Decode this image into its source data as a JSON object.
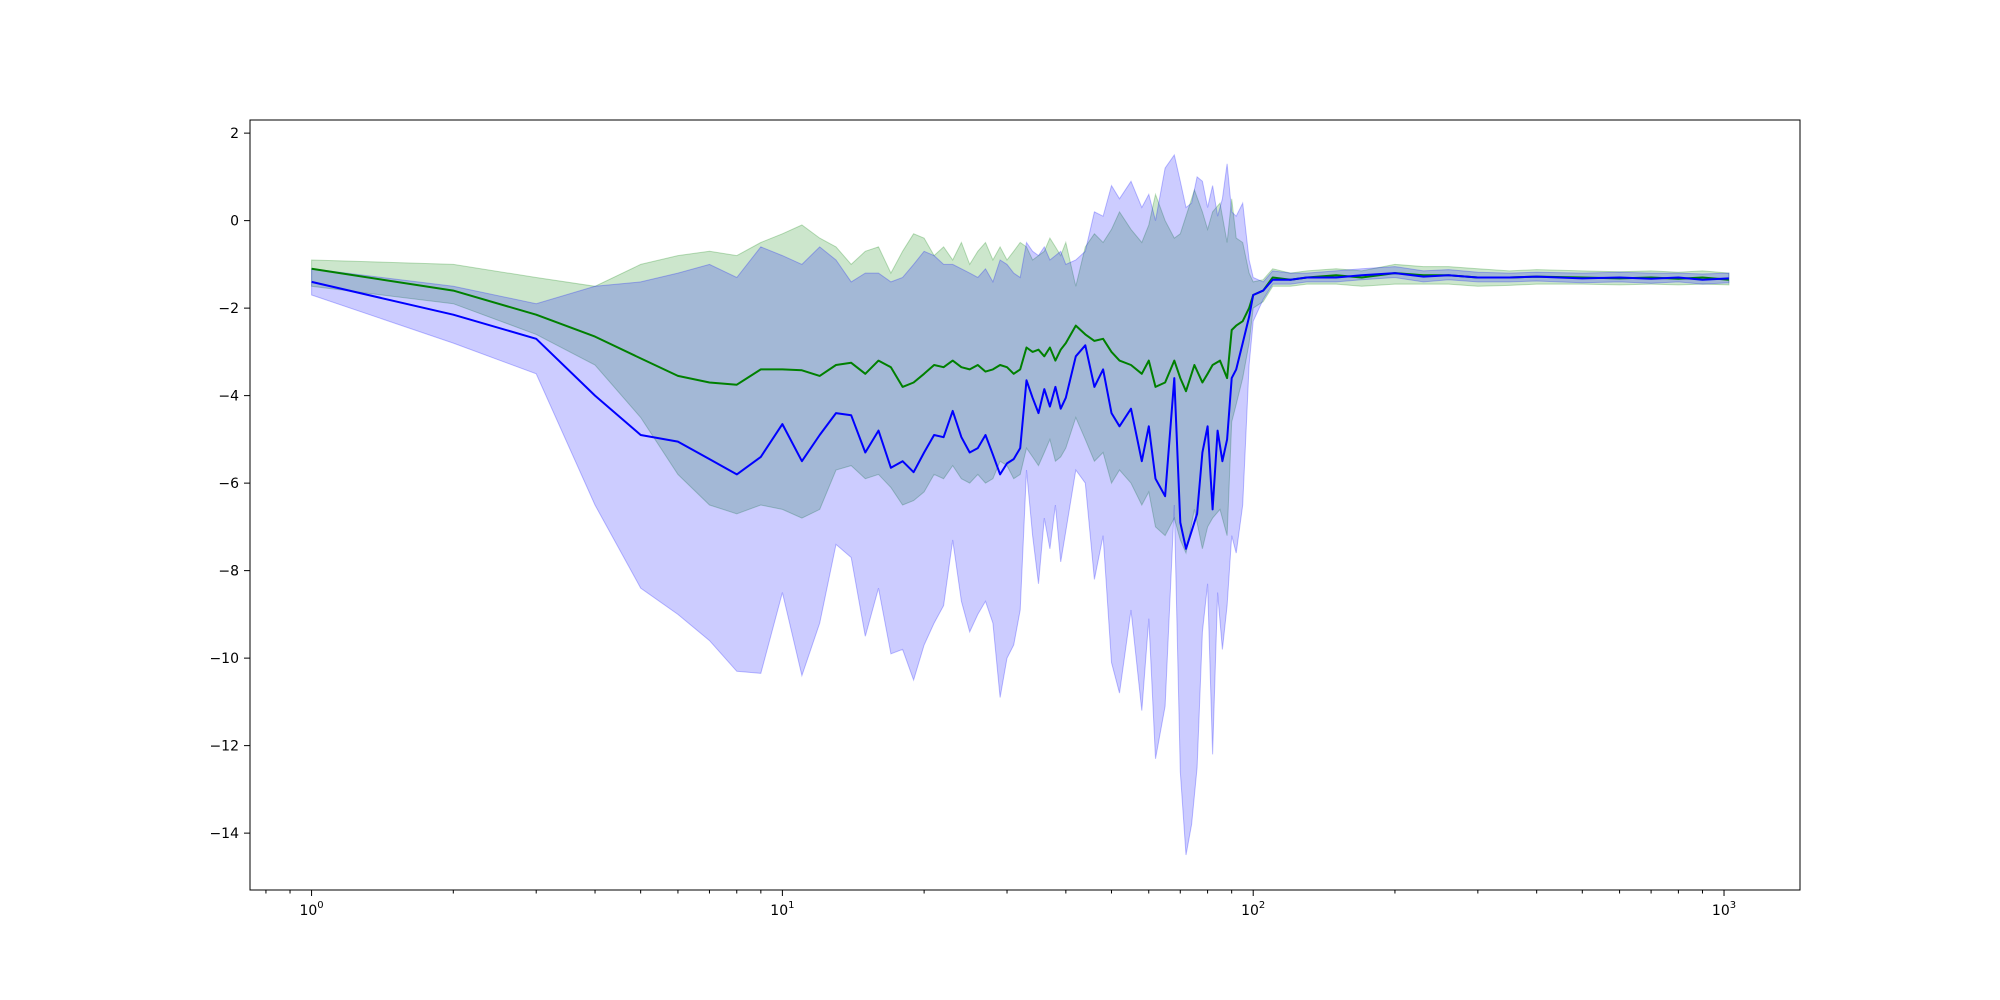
{
  "chart_data": {
    "type": "line",
    "title": "",
    "xlabel": "",
    "ylabel": "",
    "x_scale": "log",
    "xlim": [
      0.74,
      1450
    ],
    "ylim": [
      -15.3,
      2.3
    ],
    "grid": false,
    "legend": "none",
    "x_ticks": [
      {
        "value": 1,
        "base": "10",
        "exp": "0"
      },
      {
        "value": 10,
        "base": "10",
        "exp": "1"
      },
      {
        "value": 100,
        "base": "10",
        "exp": "2"
      },
      {
        "value": 1000,
        "base": "10",
        "exp": "3"
      }
    ],
    "y_ticks": [
      {
        "value": 2,
        "label": "2"
      },
      {
        "value": 0,
        "label": "0"
      },
      {
        "value": -2,
        "label": "−2"
      },
      {
        "value": -4,
        "label": "−4"
      },
      {
        "value": -6,
        "label": "−6"
      },
      {
        "value": -8,
        "label": "−8"
      },
      {
        "value": -10,
        "label": "−10"
      },
      {
        "value": -12,
        "label": "−12"
      },
      {
        "value": -14,
        "label": "−14"
      }
    ],
    "series": [
      {
        "color": "#008000",
        "band_color": "#008000",
        "band_opacity": 0.2,
        "x": [
          1,
          2,
          3,
          4,
          5,
          6,
          7,
          8,
          9,
          10,
          11,
          12,
          13,
          14,
          15,
          16,
          17,
          18,
          19,
          20,
          21,
          22,
          23,
          24,
          25,
          26,
          27,
          28,
          29,
          30,
          31,
          32,
          33,
          34,
          35,
          36,
          37,
          38,
          39,
          40,
          42,
          44,
          46,
          48,
          50,
          52,
          55,
          58,
          60,
          62,
          65,
          68,
          70,
          72,
          75,
          78,
          80,
          82,
          85,
          88,
          90,
          92,
          95,
          98,
          100,
          105,
          110,
          120,
          130,
          150,
          170,
          200,
          230,
          260,
          300,
          350,
          400,
          500,
          600,
          700,
          800,
          900,
          1024
        ],
        "y": [
          -1.1,
          -1.6,
          -2.15,
          -2.65,
          -3.15,
          -3.55,
          -3.7,
          -3.75,
          -3.4,
          -3.4,
          -3.42,
          -3.55,
          -3.3,
          -3.25,
          -3.5,
          -3.2,
          -3.35,
          -3.8,
          -3.7,
          -3.5,
          -3.3,
          -3.35,
          -3.2,
          -3.35,
          -3.4,
          -3.3,
          -3.45,
          -3.4,
          -3.3,
          -3.35,
          -3.5,
          -3.4,
          -2.9,
          -3.0,
          -2.95,
          -3.1,
          -2.9,
          -3.2,
          -2.95,
          -2.8,
          -2.4,
          -2.6,
          -2.75,
          -2.7,
          -3.0,
          -3.2,
          -3.3,
          -3.5,
          -3.2,
          -3.8,
          -3.7,
          -3.2,
          -3.6,
          -3.9,
          -3.3,
          -3.7,
          -3.5,
          -3.3,
          -3.2,
          -3.6,
          -2.5,
          -2.4,
          -2.3,
          -2.0,
          -1.7,
          -1.6,
          -1.3,
          -1.35,
          -1.3,
          -1.25,
          -1.3,
          -1.2,
          -1.25,
          -1.25,
          -1.3,
          -1.3,
          -1.28,
          -1.3,
          -1.32,
          -1.3,
          -1.33,
          -1.3,
          -1.35
        ],
        "lower": [
          -1.5,
          -1.9,
          -2.6,
          -3.3,
          -4.5,
          -5.8,
          -6.5,
          -6.7,
          -6.5,
          -6.6,
          -6.8,
          -6.6,
          -5.7,
          -5.6,
          -5.9,
          -5.8,
          -6.1,
          -6.5,
          -6.4,
          -6.2,
          -5.8,
          -5.9,
          -5.6,
          -5.9,
          -6.0,
          -5.8,
          -6.0,
          -5.9,
          -5.5,
          -5.6,
          -5.9,
          -5.8,
          -5.2,
          -5.4,
          -5.6,
          -5.3,
          -5.0,
          -5.5,
          -5.4,
          -5.2,
          -4.5,
          -5.0,
          -5.5,
          -5.3,
          -6.0,
          -5.7,
          -6.0,
          -6.5,
          -6.2,
          -7.0,
          -7.2,
          -6.8,
          -7.3,
          -7.6,
          -6.6,
          -7.5,
          -7.0,
          -6.8,
          -6.6,
          -7.2,
          -4.6,
          -4.2,
          -3.6,
          -2.8,
          -2.0,
          -1.85,
          -1.5,
          -1.5,
          -1.45,
          -1.45,
          -1.5,
          -1.45,
          -1.45,
          -1.45,
          -1.5,
          -1.48,
          -1.45,
          -1.45,
          -1.47,
          -1.45,
          -1.47,
          -1.45,
          -1.47
        ],
        "upper": [
          -0.9,
          -1.0,
          -1.3,
          -1.5,
          -1.0,
          -0.8,
          -0.7,
          -0.8,
          -0.5,
          -0.3,
          -0.1,
          -0.4,
          -0.6,
          -1.0,
          -0.7,
          -0.6,
          -1.2,
          -0.7,
          -0.3,
          -0.4,
          -0.8,
          -0.6,
          -0.9,
          -0.5,
          -1.0,
          -0.7,
          -0.5,
          -0.9,
          -0.6,
          -0.9,
          -0.7,
          -0.5,
          -0.6,
          -0.9,
          -0.8,
          -0.7,
          -0.4,
          -0.6,
          -0.8,
          -0.5,
          -1.5,
          -0.6,
          -0.3,
          -0.5,
          -0.2,
          0.2,
          -0.2,
          -0.5,
          -0.1,
          0.6,
          0.0,
          -0.4,
          -0.3,
          0.1,
          0.7,
          0.2,
          -0.2,
          0.2,
          0.4,
          -0.5,
          0.5,
          -0.4,
          -0.5,
          -1.2,
          -1.4,
          -1.35,
          -1.1,
          -1.2,
          -1.15,
          -1.1,
          -1.15,
          -1.0,
          -1.05,
          -1.05,
          -1.1,
          -1.15,
          -1.12,
          -1.15,
          -1.17,
          -1.15,
          -1.18,
          -1.15,
          -1.2
        ]
      },
      {
        "color": "#0000ff",
        "band_color": "#0000ff",
        "band_opacity": 0.2,
        "x": [
          1,
          2,
          3,
          4,
          5,
          6,
          7,
          8,
          9,
          10,
          11,
          12,
          13,
          14,
          15,
          16,
          17,
          18,
          19,
          20,
          21,
          22,
          23,
          24,
          25,
          26,
          27,
          28,
          29,
          30,
          31,
          32,
          33,
          34,
          35,
          36,
          37,
          38,
          39,
          40,
          42,
          44,
          46,
          48,
          50,
          52,
          55,
          58,
          60,
          62,
          65,
          68,
          70,
          72,
          74,
          76,
          78,
          80,
          82,
          84,
          86,
          88,
          90,
          92,
          95,
          98,
          100,
          105,
          110,
          120,
          130,
          150,
          170,
          200,
          230,
          260,
          300,
          350,
          400,
          500,
          600,
          700,
          800,
          900,
          1024
        ],
        "y": [
          -1.4,
          -2.15,
          -2.7,
          -4.0,
          -4.9,
          -5.05,
          -5.45,
          -5.8,
          -5.4,
          -4.65,
          -5.5,
          -4.9,
          -4.4,
          -4.45,
          -5.3,
          -4.8,
          -5.65,
          -5.5,
          -5.75,
          -5.3,
          -4.9,
          -4.95,
          -4.35,
          -4.95,
          -5.3,
          -5.2,
          -4.9,
          -5.35,
          -5.8,
          -5.55,
          -5.45,
          -5.2,
          -3.65,
          -4.05,
          -4.4,
          -3.85,
          -4.25,
          -3.8,
          -4.3,
          -4.05,
          -3.1,
          -2.85,
          -3.8,
          -3.4,
          -4.4,
          -4.7,
          -4.3,
          -5.5,
          -4.7,
          -5.9,
          -6.3,
          -3.6,
          -6.9,
          -7.5,
          -7.1,
          -6.7,
          -5.3,
          -4.7,
          -6.6,
          -4.8,
          -5.5,
          -5.0,
          -3.6,
          -3.4,
          -2.8,
          -2.2,
          -1.7,
          -1.6,
          -1.35,
          -1.35,
          -1.3,
          -1.3,
          -1.25,
          -1.2,
          -1.28,
          -1.25,
          -1.3,
          -1.3,
          -1.28,
          -1.32,
          -1.3,
          -1.33,
          -1.3,
          -1.35,
          -1.32
        ],
        "lower": [
          -1.7,
          -2.8,
          -3.5,
          -6.5,
          -8.4,
          -9.0,
          -9.6,
          -10.3,
          -10.35,
          -8.5,
          -10.4,
          -9.2,
          -7.4,
          -7.7,
          -9.5,
          -8.4,
          -9.9,
          -9.8,
          -10.5,
          -9.7,
          -9.2,
          -8.8,
          -7.3,
          -8.7,
          -9.4,
          -9.0,
          -8.7,
          -9.2,
          -10.9,
          -10.0,
          -9.7,
          -8.9,
          -5.7,
          -7.2,
          -8.3,
          -6.8,
          -7.5,
          -6.5,
          -7.8,
          -7.1,
          -5.7,
          -6.0,
          -8.2,
          -7.2,
          -10.1,
          -10.8,
          -8.9,
          -11.2,
          -9.1,
          -12.3,
          -11.1,
          -6.5,
          -12.6,
          -14.5,
          -13.8,
          -12.5,
          -9.4,
          -8.3,
          -12.2,
          -8.5,
          -9.8,
          -8.8,
          -7.2,
          -7.6,
          -6.5,
          -3.3,
          -2.3,
          -1.8,
          -1.45,
          -1.45,
          -1.4,
          -1.4,
          -1.35,
          -1.3,
          -1.4,
          -1.35,
          -1.4,
          -1.4,
          -1.38,
          -1.42,
          -1.4,
          -1.43,
          -1.4,
          -1.45,
          -1.42
        ],
        "upper": [
          -1.1,
          -1.5,
          -1.9,
          -1.5,
          -1.4,
          -1.2,
          -1.0,
          -1.3,
          -0.6,
          -0.8,
          -1.0,
          -0.6,
          -0.9,
          -1.4,
          -1.2,
          -1.2,
          -1.4,
          -1.3,
          -1.0,
          -0.7,
          -0.8,
          -1.0,
          -1.0,
          -1.1,
          -1.2,
          -1.3,
          -1.1,
          -1.4,
          -0.9,
          -1.0,
          -1.2,
          -1.3,
          -0.5,
          -0.7,
          -0.8,
          -0.6,
          -0.9,
          -0.8,
          -0.7,
          -1.0,
          -0.9,
          -0.7,
          0.2,
          0.1,
          0.8,
          0.5,
          0.9,
          0.3,
          0.6,
          0.0,
          1.2,
          1.5,
          0.9,
          0.3,
          0.4,
          1.0,
          0.9,
          0.3,
          0.8,
          0.1,
          0.5,
          1.3,
          0.2,
          0.1,
          0.4,
          -0.9,
          -1.3,
          -1.4,
          -1.15,
          -1.2,
          -1.2,
          -1.15,
          -1.1,
          -1.05,
          -1.15,
          -1.12,
          -1.18,
          -1.2,
          -1.18,
          -1.2,
          -1.18,
          -1.2,
          -1.2,
          -1.22,
          -1.2
        ]
      }
    ]
  }
}
